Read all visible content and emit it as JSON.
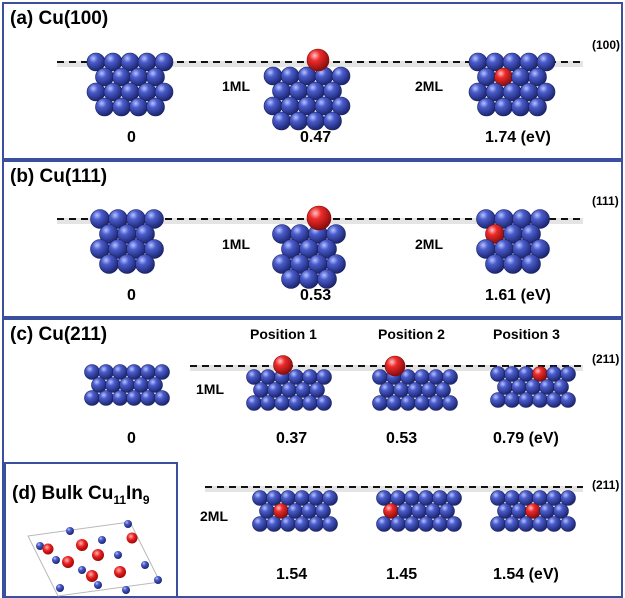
{
  "colors": {
    "panel_border": "#3a4f9e",
    "cu_atom": "#3d4ea8",
    "in_atom": "#e02020",
    "surface_line": "#111111"
  },
  "panel_a": {
    "title": "(a)  Cu(100)",
    "surface": "(100)",
    "step1": "1ML",
    "step2": "2ML",
    "values": [
      "0",
      "0.47",
      "1.74 (eV)"
    ]
  },
  "panel_b": {
    "title": "(b)  Cu(111)",
    "surface": "(111)",
    "step1": "1ML",
    "step2": "2ML",
    "values": [
      "0",
      "0.53",
      "1.61 (eV)"
    ]
  },
  "panel_c": {
    "title": "(c)  Cu(211)",
    "surface": "(211)",
    "positions": [
      "Position 1",
      "Position 2",
      "Position 3"
    ],
    "step1": "1ML",
    "values": [
      "0",
      "0.37",
      "0.53",
      "0.79 (eV)"
    ]
  },
  "panel_d": {
    "title_main": "(d)  Bulk Cu",
    "sub1": "11",
    "mid": "In",
    "sub2": "9",
    "surface": "(211)",
    "step2": "2ML",
    "values": [
      "1.54",
      "1.45",
      "1.54 (eV)"
    ]
  },
  "icons": {
    "atom_cluster": "sphere-cluster-icon",
    "unit_cell": "crystal-cell-icon"
  }
}
